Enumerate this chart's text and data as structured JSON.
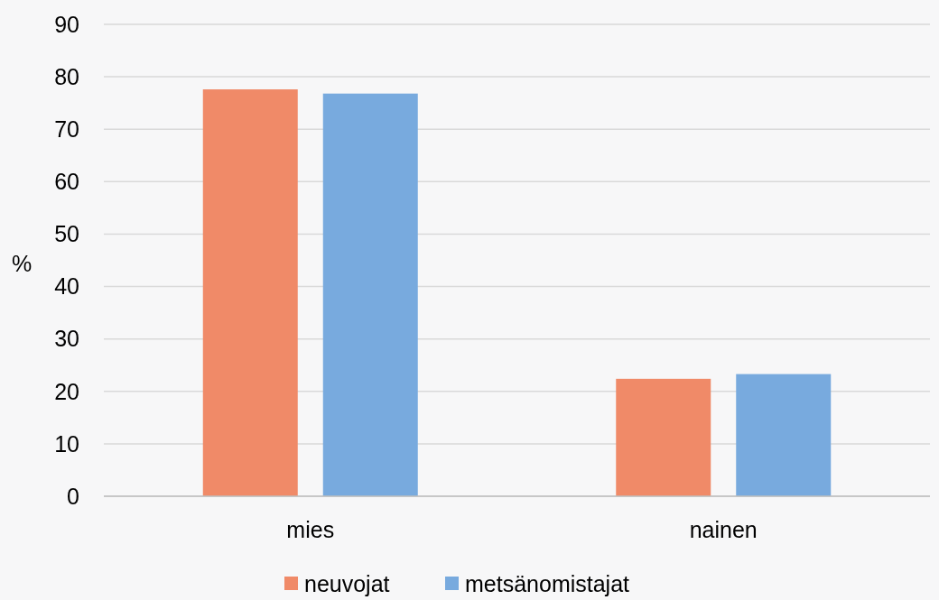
{
  "chart_data": {
    "type": "bar",
    "ylabel": "%",
    "categories": [
      "mies",
      "nainen"
    ],
    "series": [
      {
        "name": "neuvojat",
        "color": "#f08a68",
        "values": [
          77.6,
          22.4
        ]
      },
      {
        "name": "metsänomistajat",
        "color": "#78aade",
        "values": [
          76.8,
          23.3
        ]
      }
    ],
    "ylim": [
      0,
      90
    ],
    "yticks": [
      0,
      10,
      20,
      30,
      40,
      50,
      60,
      70,
      80,
      90
    ],
    "grid": "y",
    "legend": "bottom"
  }
}
